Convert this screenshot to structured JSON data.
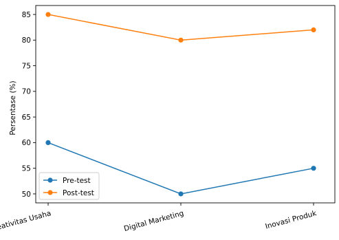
{
  "chart_data": {
    "type": "line",
    "title": "",
    "xlabel": "",
    "ylabel": "Persentase (%)",
    "categories": [
      "Kreativitas Usaha",
      "Digital Marketing",
      "Inovasi Produk"
    ],
    "series": [
      {
        "name": "Pre-test",
        "values": [
          60,
          50,
          55
        ],
        "color": "#1f77b4"
      },
      {
        "name": "Post-test",
        "values": [
          85,
          80,
          82
        ],
        "color": "#ff7f0e"
      }
    ],
    "ylim": [
      48.25,
      86.75
    ],
    "yticks": [
      "50",
      "55",
      "60",
      "65",
      "70",
      "75",
      "80",
      "85"
    ],
    "grid": false,
    "legend": "lower-left",
    "marker": "circle"
  }
}
